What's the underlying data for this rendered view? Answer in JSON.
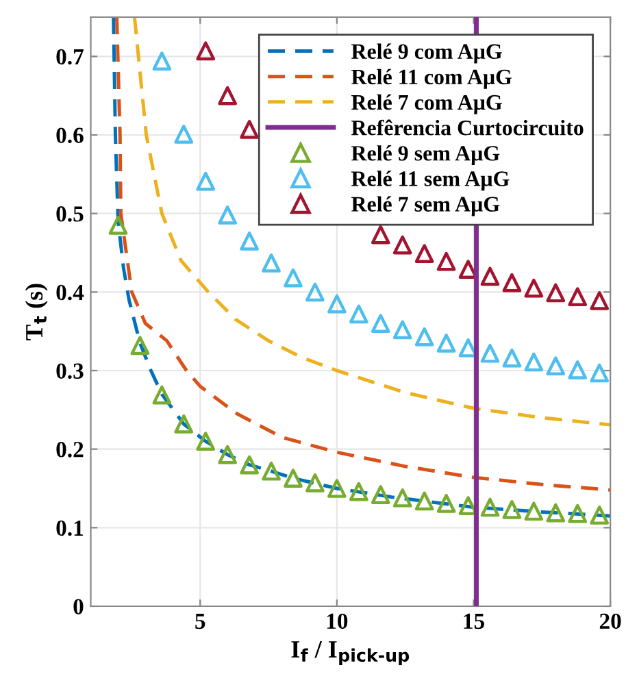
{
  "chart_data": {
    "type": "line",
    "xlabel": "I$_{f}$ / I$_{pick-up}$",
    "ylabel": "T$_{t}$ (s)",
    "xlim": [
      1,
      20
    ],
    "ylim": [
      0,
      0.75
    ],
    "xticks": [
      5,
      10,
      15,
      20
    ],
    "yticks": [
      0,
      0.1,
      0.2,
      0.3,
      0.4,
      0.5,
      0.6,
      0.7
    ],
    "grid": true,
    "legend": "top right",
    "series": [
      {
        "name": "Relé 9 com AμG",
        "type": "line",
        "line_style": "dashed",
        "marker": "none",
        "color": "#0072bd",
        "x": [
          1.83,
          1.9,
          2.0,
          2.2,
          2.4,
          2.8,
          3.2,
          3.6,
          4.4,
          5.2,
          6.0,
          6.8,
          7.6,
          8.4,
          10,
          12,
          15,
          17.5,
          20
        ],
        "values": [
          0.75,
          0.6,
          0.49,
          0.43,
          0.39,
          0.335,
          0.3,
          0.27,
          0.232,
          0.21,
          0.193,
          0.18,
          0.172,
          0.163,
          0.15,
          0.139,
          0.126,
          0.12,
          0.115
        ]
      },
      {
        "name": "Relé 11 com AμG",
        "type": "line",
        "line_style": "dashed",
        "marker": "none",
        "color": "#d95319",
        "x": [
          1.95,
          2.07,
          2.1,
          2.5,
          3.0,
          3.78,
          4.5,
          5.0,
          6.35,
          8,
          10,
          12.5,
          15,
          17.5,
          20
        ],
        "values": [
          0.75,
          0.6,
          0.5,
          0.4,
          0.36,
          0.338,
          0.3,
          0.28,
          0.245,
          0.215,
          0.196,
          0.178,
          0.164,
          0.155,
          0.148
        ]
      },
      {
        "name": "Relé 7 com AμG",
        "type": "line",
        "line_style": "dashed",
        "marker": "none",
        "color": "#edb120",
        "x": [
          2.6,
          3.03,
          3.6,
          4.3,
          5.3,
          6.3,
          7.5,
          8.7,
          10,
          12.5,
          15,
          17.5,
          20
        ],
        "values": [
          0.75,
          0.6,
          0.5,
          0.44,
          0.4,
          0.365,
          0.338,
          0.317,
          0.3,
          0.272,
          0.252,
          0.24,
          0.231
        ]
      },
      {
        "name": "Relé 9 sem AμG",
        "type": "scatter",
        "marker": "triangle",
        "color": "#77ac30",
        "x": [
          2.0,
          2.8,
          3.6,
          4.4,
          5.2,
          6.0,
          6.8,
          7.6,
          8.4,
          9.2,
          10.0,
          10.8,
          11.6,
          12.4,
          13.2,
          14.0,
          14.8,
          15.6,
          16.4,
          17.2,
          18.0,
          18.8,
          19.6
        ],
        "values": [
          0.485,
          0.332,
          0.269,
          0.232,
          0.21,
          0.193,
          0.18,
          0.172,
          0.163,
          0.157,
          0.15,
          0.146,
          0.142,
          0.138,
          0.134,
          0.131,
          0.128,
          0.126,
          0.123,
          0.121,
          0.119,
          0.118,
          0.116
        ]
      },
      {
        "name": "Relé 11 sem AμG",
        "type": "scatter",
        "marker": "triangle",
        "color": "#4dbeee",
        "x": [
          3.6,
          4.4,
          5.2,
          6.0,
          6.8,
          7.6,
          8.4,
          9.2,
          10.0,
          10.8,
          11.6,
          12.4,
          13.2,
          14.0,
          14.8,
          15.6,
          16.4,
          17.2,
          18.0,
          18.8,
          19.6
        ],
        "values": [
          0.694,
          0.601,
          0.541,
          0.498,
          0.465,
          0.437,
          0.418,
          0.4,
          0.385,
          0.372,
          0.36,
          0.352,
          0.343,
          0.335,
          0.329,
          0.322,
          0.316,
          0.311,
          0.306,
          0.301,
          0.297
        ]
      },
      {
        "name": "Relé 7 sem AμG",
        "type": "scatter",
        "marker": "triangle",
        "color": "#a2142f",
        "x": [
          5.2,
          6.0,
          6.8,
          7.6,
          8.4,
          9.2,
          10.0,
          10.8,
          11.6,
          12.4,
          13.2,
          14.0,
          14.8,
          15.6,
          16.4,
          17.2,
          18.0,
          18.8,
          19.6
        ],
        "values": [
          0.707,
          0.65,
          0.607,
          null,
          null,
          null,
          null,
          null,
          0.473,
          0.46,
          0.449,
          0.439,
          0.429,
          0.42,
          0.412,
          0.405,
          0.399,
          0.394,
          0.389
        ]
      }
    ],
    "ref_lines": [
      {
        "axis": "x",
        "value": 15.1,
        "label": "Refêrencia Curtocircuito",
        "color": "#7e2f8e",
        "line_style": "solid"
      }
    ]
  }
}
